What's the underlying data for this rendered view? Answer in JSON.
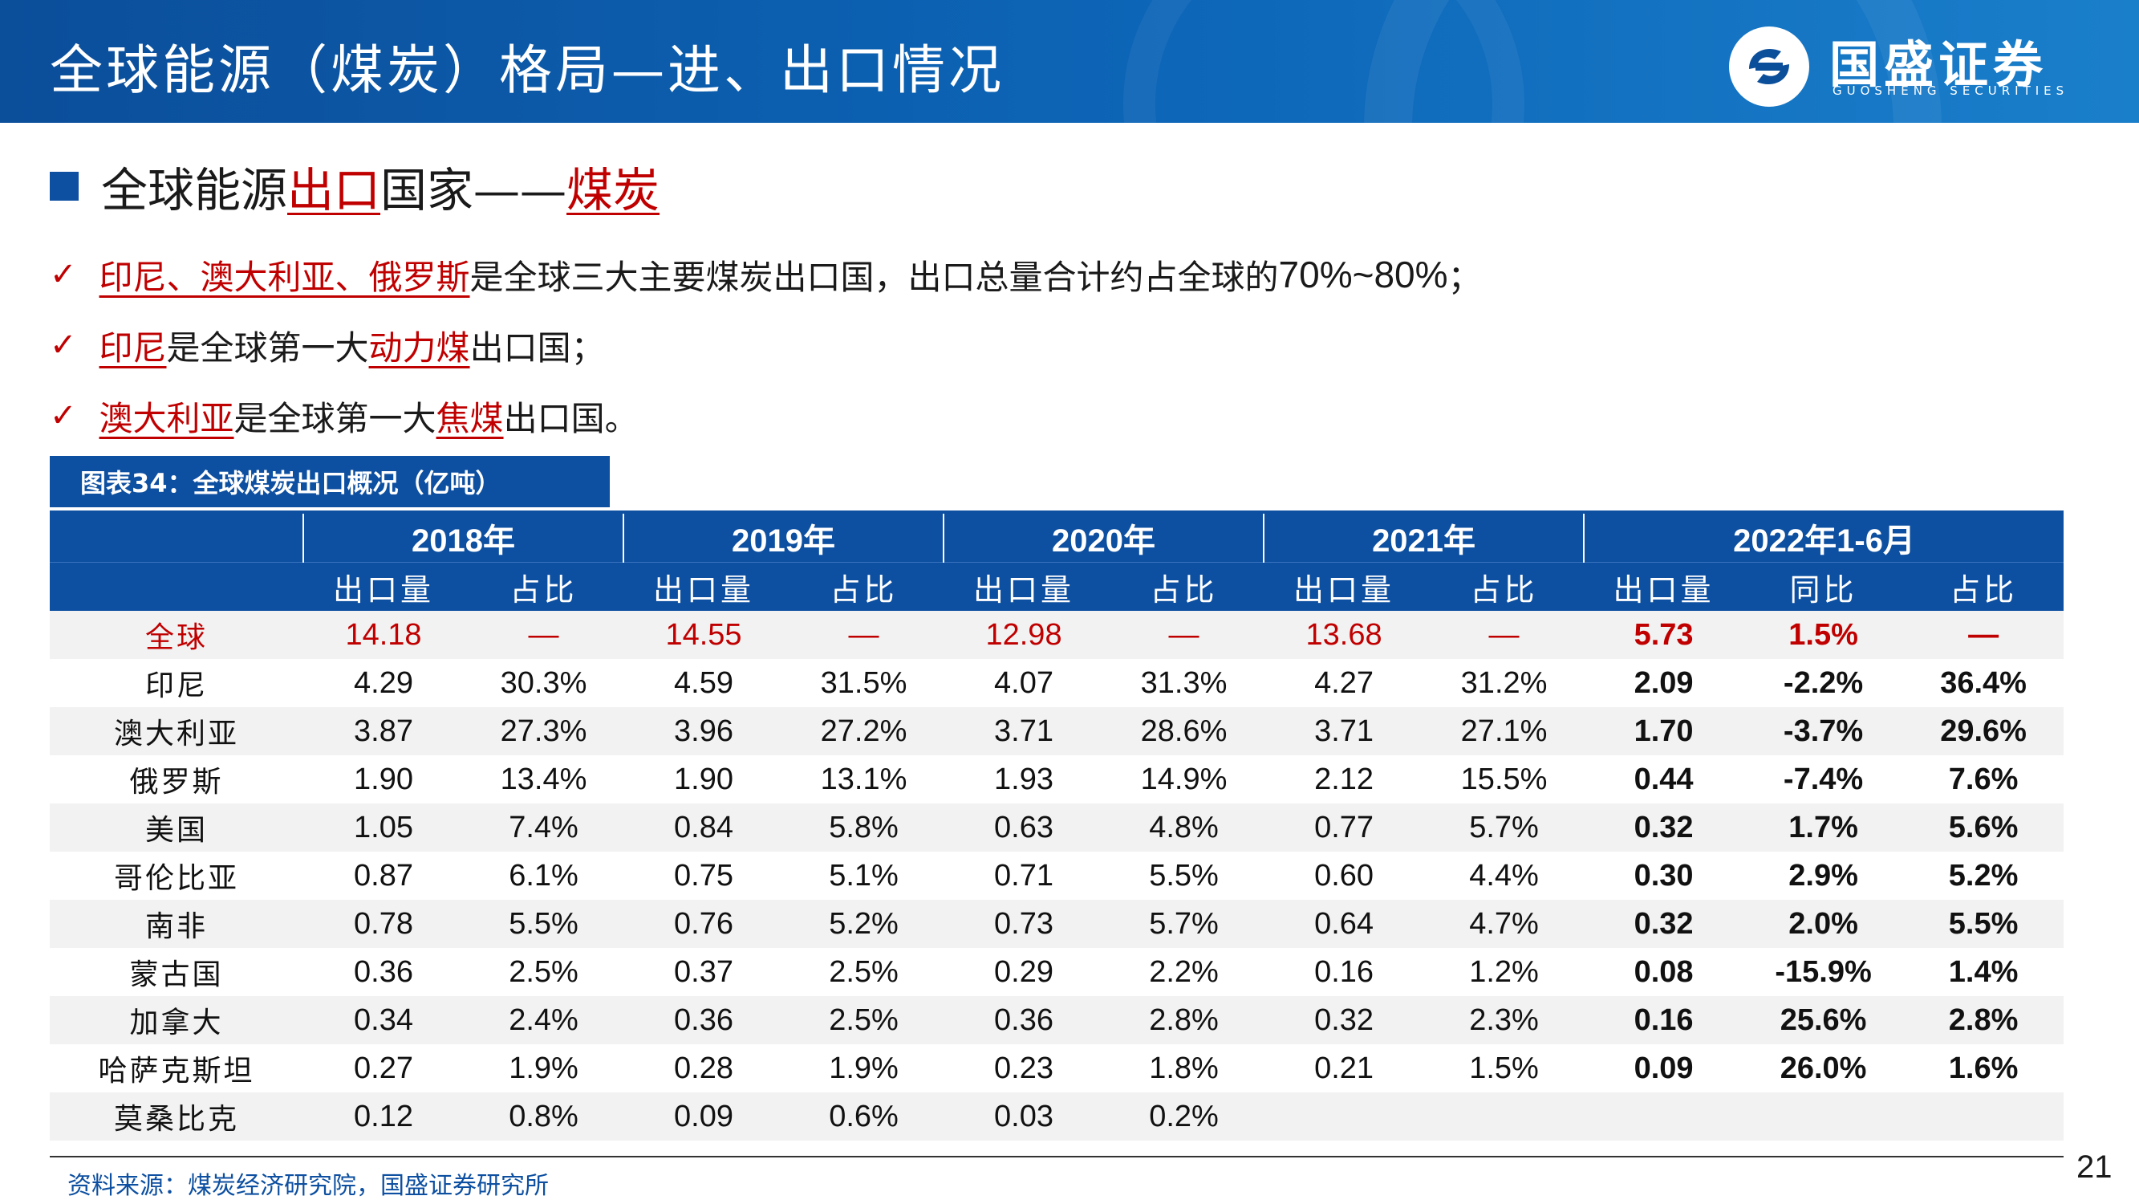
{
  "header": {
    "title": "全球能源（煤炭）格局—进、出口情况",
    "logo_text": "国盛证券",
    "logo_sub": "GUOSHENG SECURITIES"
  },
  "section": {
    "prefix": "全球能源",
    "highlight1": "出口",
    "mid": "国家——",
    "highlight2": "煤炭"
  },
  "bullets": [
    {
      "red": "印尼、澳大利亚、俄罗斯",
      "text1": "是全球三大主要煤炭出口国，出口总量合计约占全球的",
      "num": "70%~80%",
      "text2": "；"
    },
    {
      "red": "印尼",
      "text1": "是全球第一大",
      "red2": "动力煤",
      "text2": "出口国；"
    },
    {
      "red": "澳大利亚",
      "text1": "是全球第一大",
      "red2": "焦煤",
      "text2": "出口国。"
    }
  ],
  "caption": "图表34：全球煤炭出口概况（亿吨）",
  "table": {
    "years": [
      "2018年",
      "2019年",
      "2020年",
      "2021年",
      "2022年1-6月"
    ],
    "sub_export": "出口量",
    "sub_share": "占比",
    "sub_yoy": "同比",
    "rows": [
      {
        "name": "全球",
        "v": [
          "14.18",
          "—",
          "14.55",
          "—",
          "12.98",
          "—",
          "13.68",
          "—",
          "5.73",
          "1.5%",
          "—"
        ]
      },
      {
        "name": "印尼",
        "v": [
          "4.29",
          "30.3%",
          "4.59",
          "31.5%",
          "4.07",
          "31.3%",
          "4.27",
          "31.2%",
          "2.09",
          "-2.2%",
          "36.4%"
        ]
      },
      {
        "name": "澳大利亚",
        "v": [
          "3.87",
          "27.3%",
          "3.96",
          "27.2%",
          "3.71",
          "28.6%",
          "3.71",
          "27.1%",
          "1.70",
          "-3.7%",
          "29.6%"
        ]
      },
      {
        "name": "俄罗斯",
        "v": [
          "1.90",
          "13.4%",
          "1.90",
          "13.1%",
          "1.93",
          "14.9%",
          "2.12",
          "15.5%",
          "0.44",
          "-7.4%",
          "7.6%"
        ]
      },
      {
        "name": "美国",
        "v": [
          "1.05",
          "7.4%",
          "0.84",
          "5.8%",
          "0.63",
          "4.8%",
          "0.77",
          "5.7%",
          "0.32",
          "1.7%",
          "5.6%"
        ]
      },
      {
        "name": "哥伦比亚",
        "v": [
          "0.87",
          "6.1%",
          "0.75",
          "5.1%",
          "0.71",
          "5.5%",
          "0.60",
          "4.4%",
          "0.30",
          "2.9%",
          "5.2%"
        ]
      },
      {
        "name": "南非",
        "v": [
          "0.78",
          "5.5%",
          "0.76",
          "5.2%",
          "0.73",
          "5.7%",
          "0.64",
          "4.7%",
          "0.32",
          "2.0%",
          "5.5%"
        ]
      },
      {
        "name": "蒙古国",
        "v": [
          "0.36",
          "2.5%",
          "0.37",
          "2.5%",
          "0.29",
          "2.2%",
          "0.16",
          "1.2%",
          "0.08",
          "-15.9%",
          "1.4%"
        ]
      },
      {
        "name": "加拿大",
        "v": [
          "0.34",
          "2.4%",
          "0.36",
          "2.5%",
          "0.36",
          "2.8%",
          "0.32",
          "2.3%",
          "0.16",
          "25.6%",
          "2.8%"
        ]
      },
      {
        "name": "哈萨克斯坦",
        "v": [
          "0.27",
          "1.9%",
          "0.28",
          "1.9%",
          "0.23",
          "1.8%",
          "0.21",
          "1.5%",
          "0.09",
          "26.0%",
          "1.6%"
        ]
      },
      {
        "name": "莫桑比克",
        "v": [
          "0.12",
          "0.8%",
          "0.09",
          "0.6%",
          "0.03",
          "0.2%",
          "",
          "",
          "",
          "",
          ""
        ]
      }
    ]
  },
  "source": "资料来源：煤炭经济研究院，国盛证券研究所",
  "page_number": "21"
}
